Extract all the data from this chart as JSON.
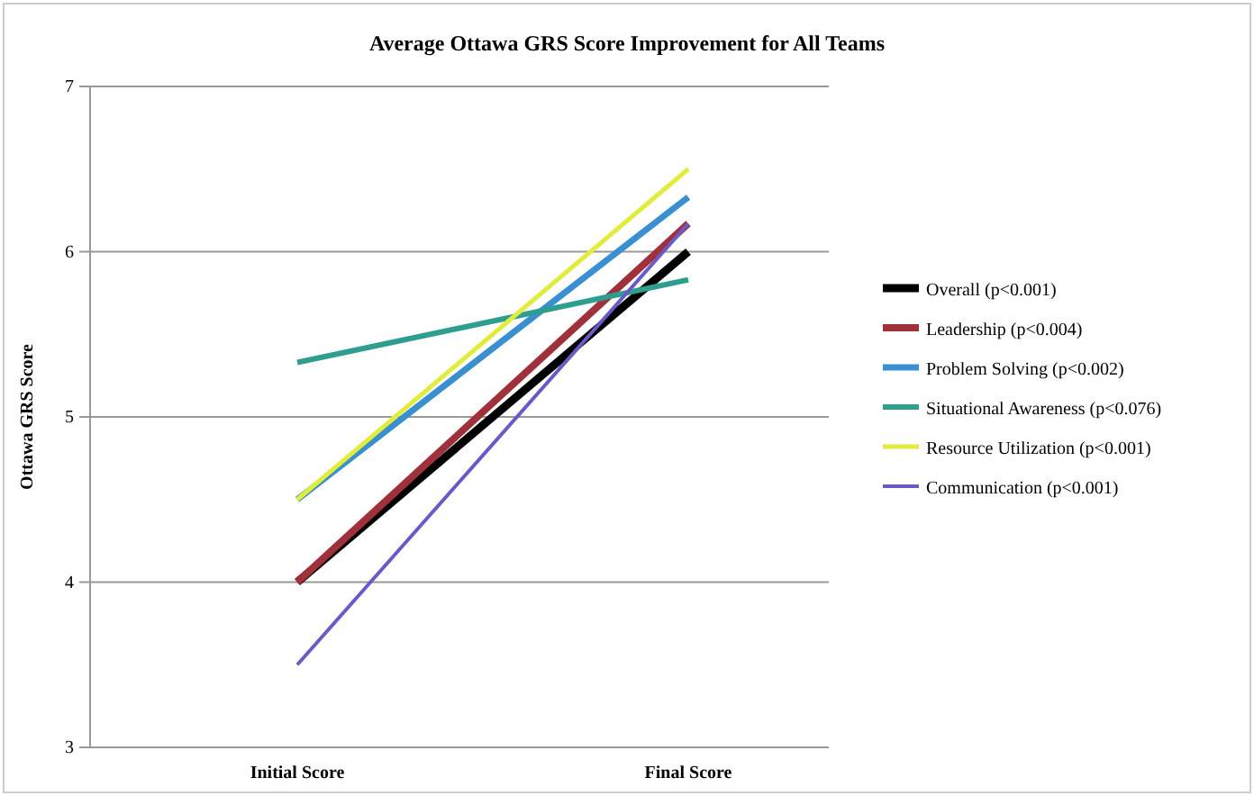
{
  "chart_data": {
    "type": "line",
    "title": "Average Ottawa GRS Score Improvement for All Teams",
    "ylabel": "Ottawa GRS Score",
    "categories": [
      "Initial Score",
      "Final Score"
    ],
    "series": [
      {
        "name": "Overall (p<0.001)",
        "color": "#000000",
        "values": [
          4.0,
          6.0
        ]
      },
      {
        "name": "Leadership (p<0.004)",
        "color": "#a0303a",
        "values": [
          4.0,
          6.17
        ]
      },
      {
        "name": "Problem Solving (p<0.002)",
        "color": "#3a8fd0",
        "values": [
          4.5,
          6.33
        ]
      },
      {
        "name": "Situational Awareness (p<0.076)",
        "color": "#2e9e8e",
        "values": [
          5.33,
          5.83
        ]
      },
      {
        "name": "Resource Utilization (p<0.001)",
        "color": "#e2ec3c",
        "values": [
          4.5,
          6.5
        ]
      },
      {
        "name": "Communication (p<0.001)",
        "color": "#6a5ac8",
        "values": [
          3.5,
          6.17
        ]
      }
    ],
    "ylim": [
      3,
      7
    ],
    "yticks": [
      3,
      4,
      5,
      6,
      7
    ],
    "grid": "y",
    "legend": "right",
    "marker": "none",
    "line_style": "solid"
  }
}
